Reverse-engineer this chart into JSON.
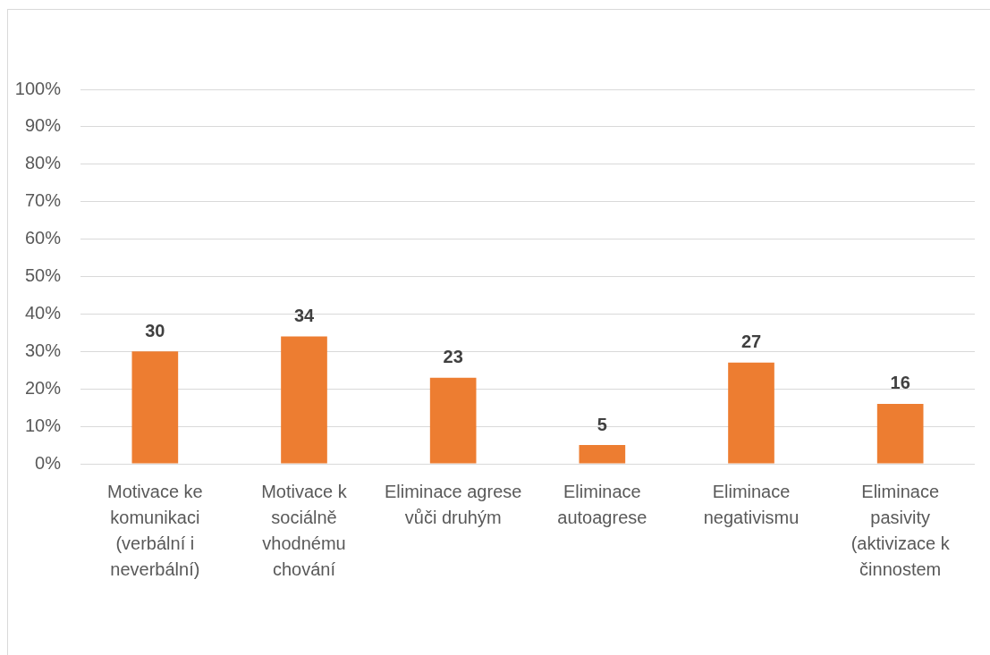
{
  "chart_data": {
    "type": "bar",
    "categories": [
      "Motivace ke komunikaci (verbální i neverbální)",
      "Motivace k sociálně vhodnému chování",
      "Eliminace agrese vůči druhým",
      "Eliminace autoagrese",
      "Eliminace negativismu",
      "Eliminace pasivity (aktivizace k činnostem"
    ],
    "values": [
      30,
      34,
      23,
      5,
      27,
      16
    ],
    "data_labels": true,
    "color": "#ed7d31",
    "ylim": [
      0,
      100
    ],
    "yticks": [
      {
        "value": 0,
        "label": "0%"
      },
      {
        "value": 10,
        "label": "10%"
      },
      {
        "value": 20,
        "label": "20%"
      },
      {
        "value": 30,
        "label": "30%"
      },
      {
        "value": 40,
        "label": "40%"
      },
      {
        "value": 50,
        "label": "50%"
      },
      {
        "value": 60,
        "label": "60%"
      },
      {
        "value": 70,
        "label": "70%"
      },
      {
        "value": 80,
        "label": "80%"
      },
      {
        "value": 90,
        "label": "90%"
      },
      {
        "value": 100,
        "label": "100%"
      }
    ],
    "grid": "y"
  }
}
